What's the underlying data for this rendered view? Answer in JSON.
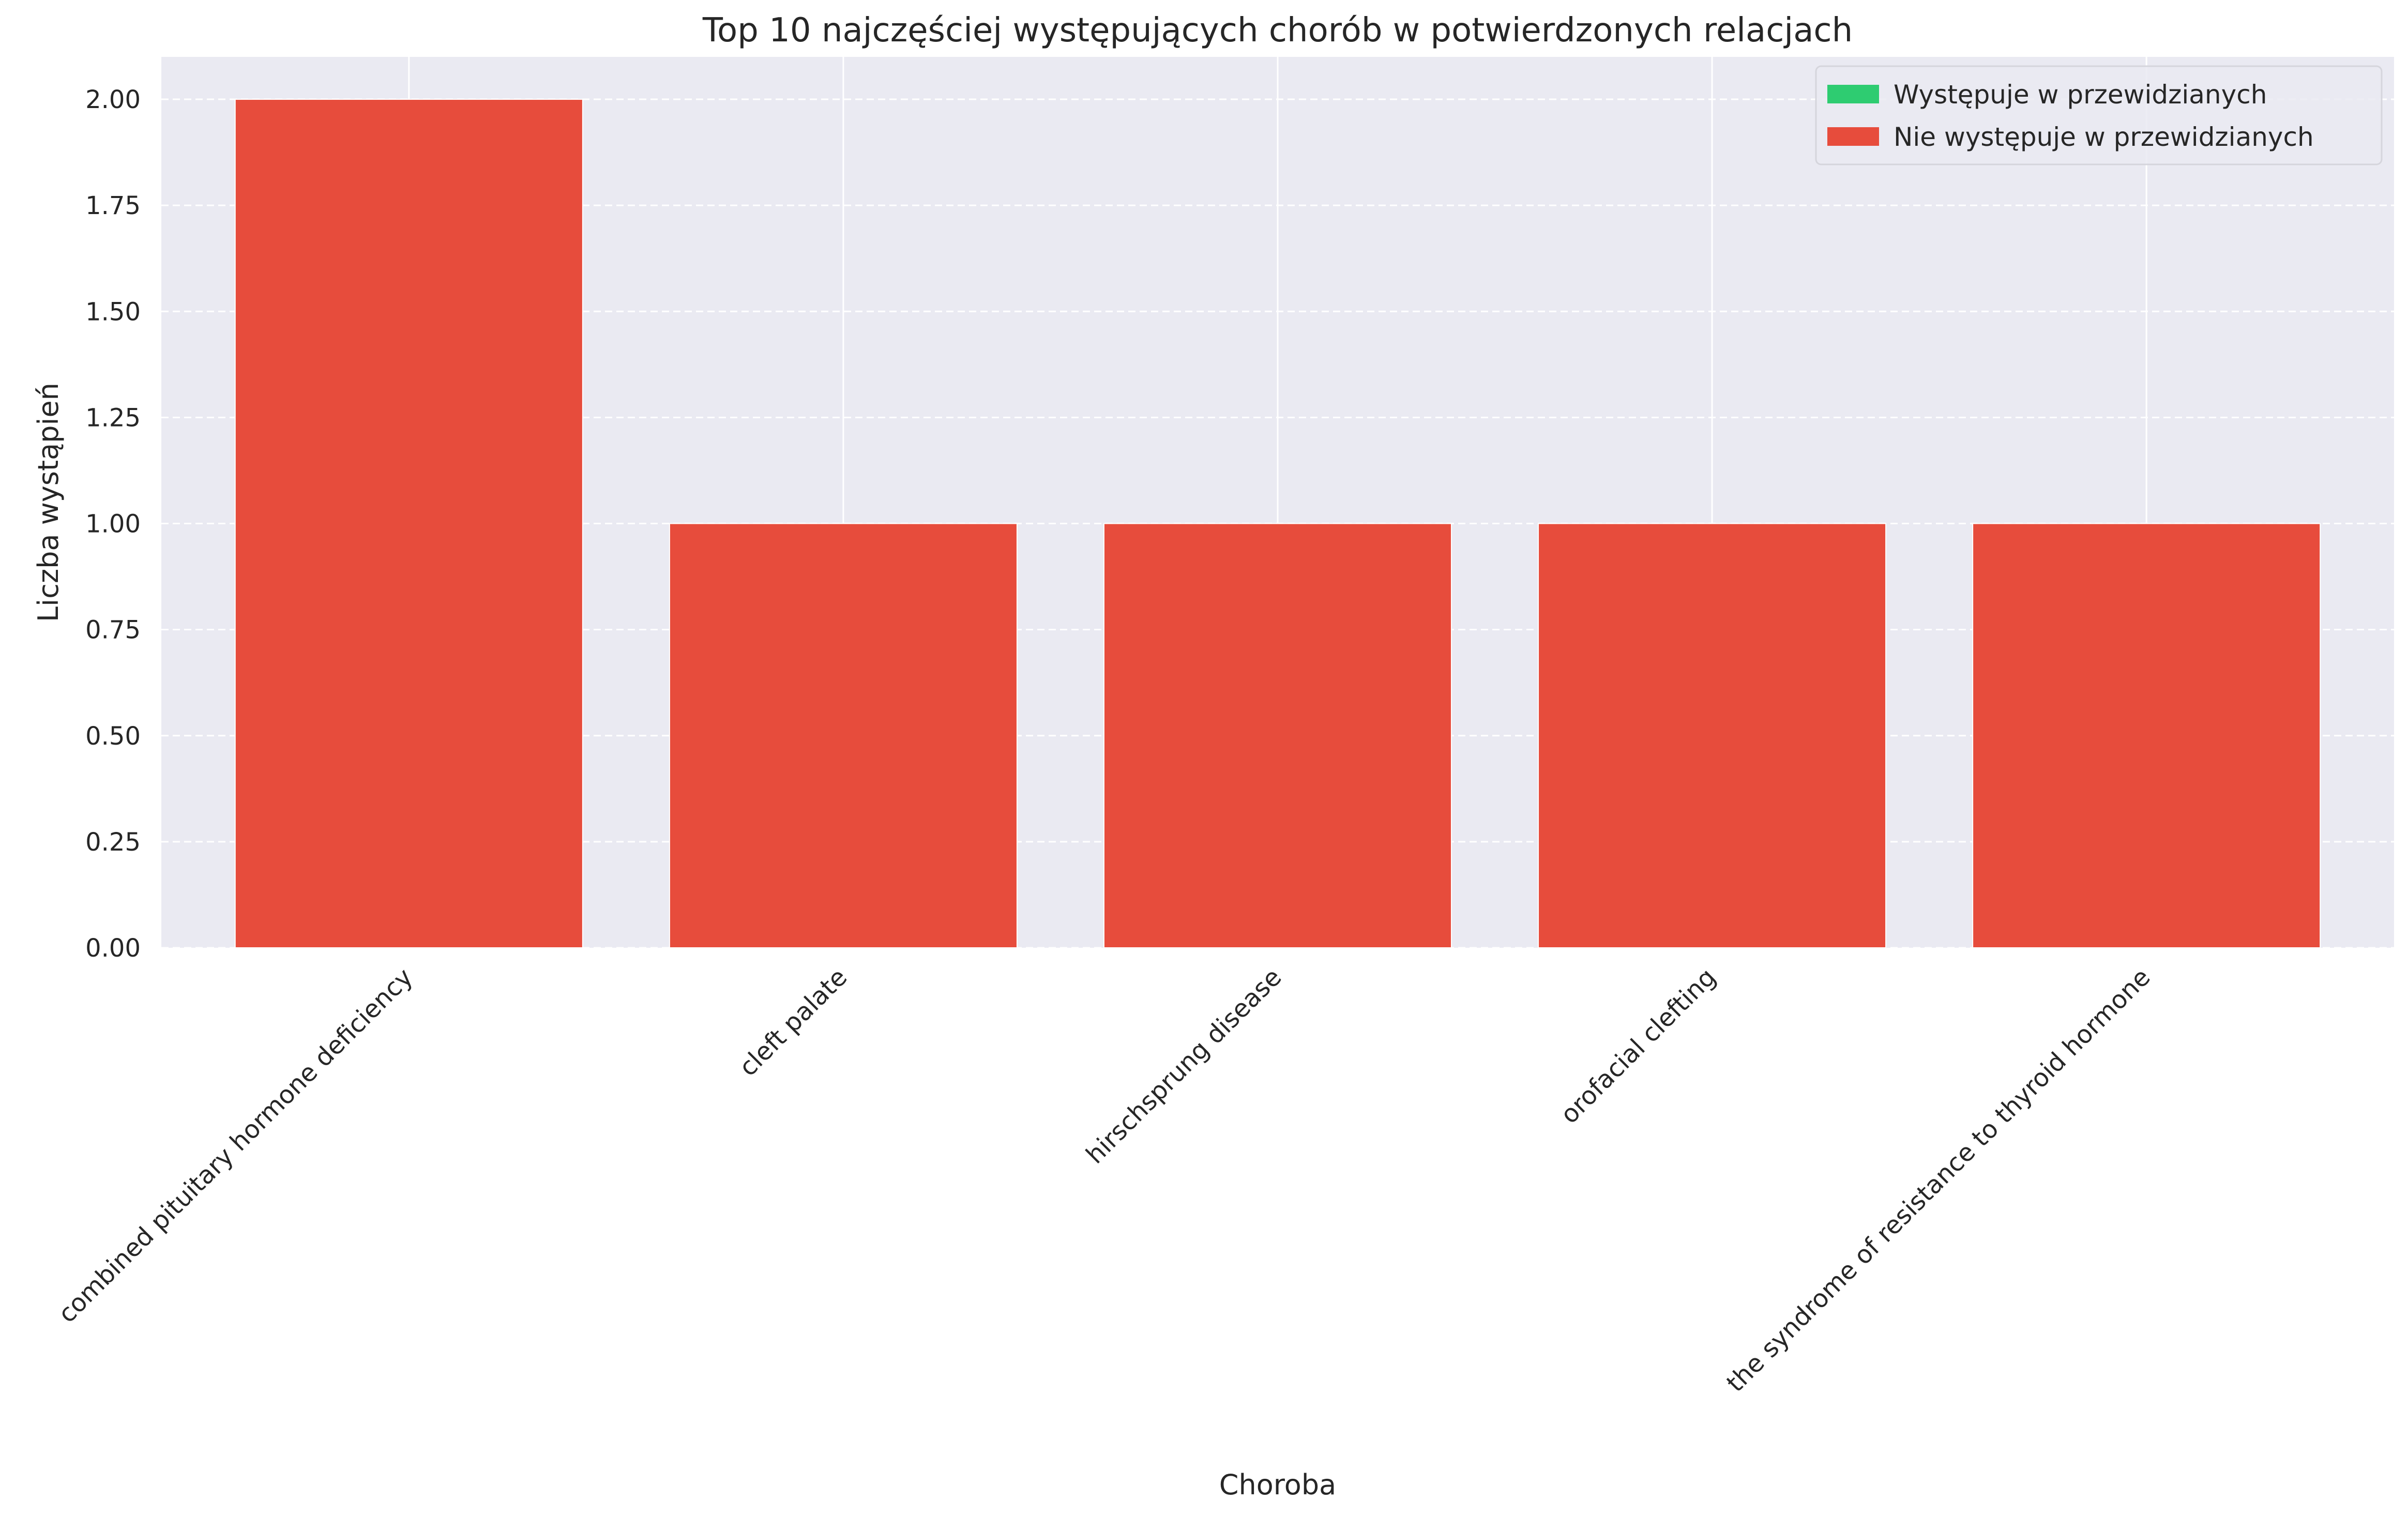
{
  "chart_data": {
    "type": "bar",
    "title": "Top 10 najczęściej występujących chorób w potwierdzonych relacjach",
    "xlabel": "Choroba",
    "ylabel": "Liczba wystąpień",
    "categories": [
      "combined pituitary hormone deficiency",
      "cleft palate",
      "hirschsprung disease",
      "orofacial clefting",
      "the syndrome of resistance to thyroid hormone"
    ],
    "series": [
      {
        "name": "Występuje w przewidzianych",
        "color": "#2ecc71",
        "values": [
          0,
          0,
          0,
          0,
          0
        ]
      },
      {
        "name": "Nie występuje w przewidzianych",
        "color": "#e74c3c",
        "values": [
          2,
          1,
          1,
          1,
          1
        ]
      }
    ],
    "stacked": true,
    "ylim": [
      0,
      2.1
    ],
    "yticks": [
      "0.00",
      "0.25",
      "0.50",
      "0.75",
      "1.00",
      "1.25",
      "1.50",
      "1.75",
      "2.00"
    ],
    "grid": true,
    "legend_position": "top-right",
    "background_color": "#eaeaf2"
  }
}
